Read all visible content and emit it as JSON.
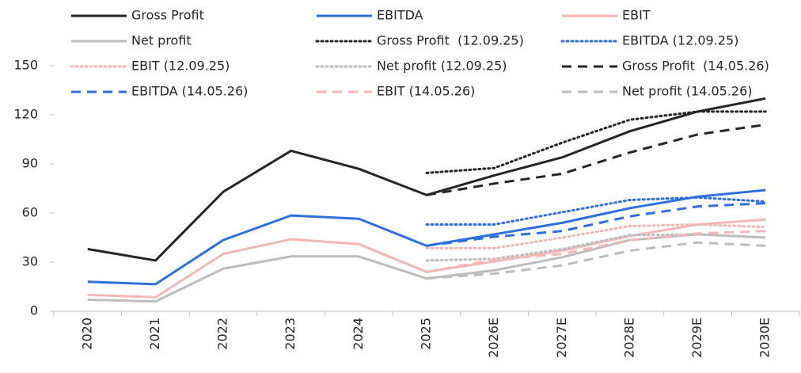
{
  "chart_data": {
    "type": "line",
    "categories": [
      "2020",
      "2021",
      "2022",
      "2023",
      "2024",
      "2025",
      "2026E",
      "2027E",
      "2028E",
      "2029E",
      "2030E"
    ],
    "ylim": [
      0,
      150
    ],
    "yticks": [
      0,
      30,
      60,
      90,
      120,
      150
    ],
    "series": [
      {
        "name": "Gross Profit",
        "color": "#262626",
        "style": "solid",
        "values": [
          38,
          31,
          73,
          98,
          87,
          71,
          83,
          94,
          110,
          122,
          130
        ]
      },
      {
        "name": "EBITDA",
        "color": "#2f6fdf",
        "style": "solid",
        "values": [
          18,
          16.5,
          43.5,
          58.5,
          56.5,
          40,
          47,
          54,
          63,
          70,
          74
        ]
      },
      {
        "name": "EBIT",
        "color": "#f4b6b6",
        "style": "solid",
        "values": [
          10,
          8.5,
          35,
          44,
          41,
          24,
          30.5,
          37,
          46,
          53,
          56
        ]
      },
      {
        "name": "Net profit",
        "color": "#bdbdbd",
        "style": "solid",
        "values": [
          7,
          6,
          26,
          33.5,
          33.5,
          20,
          25,
          33,
          43.5,
          47,
          45
        ]
      },
      {
        "name": "Gross Profit  (12.09.25)",
        "color": "#262626",
        "style": "dotted",
        "values": [
          null,
          null,
          null,
          null,
          null,
          84.5,
          87.5,
          103,
          117,
          122,
          122
        ]
      },
      {
        "name": "EBITDA (12.09.25)",
        "color": "#2f6fdf",
        "style": "dotted",
        "values": [
          null,
          null,
          null,
          null,
          null,
          53,
          53,
          60.5,
          68,
          69.5,
          67
        ]
      },
      {
        "name": "EBIT (12.09.25)",
        "color": "#f4b6b6",
        "style": "dotted",
        "values": [
          null,
          null,
          null,
          null,
          null,
          38.5,
          38.5,
          45,
          52,
          53,
          51.5
        ]
      },
      {
        "name": "Net profit (12.09.25)",
        "color": "#bdbdbd",
        "style": "dotted",
        "values": [
          null,
          null,
          null,
          null,
          null,
          31,
          32,
          38,
          46.5,
          47,
          45
        ]
      },
      {
        "name": "Gross Profit  (14.05.26)",
        "color": "#262626",
        "style": "dashed",
        "values": [
          null,
          null,
          null,
          null,
          null,
          71,
          78,
          84,
          97,
          108,
          114
        ]
      },
      {
        "name": "EBITDA (14.05.26)",
        "color": "#2f6fdf",
        "style": "dashed",
        "values": [
          null,
          null,
          null,
          null,
          null,
          40,
          45.5,
          49,
          58,
          64,
          66
        ]
      },
      {
        "name": "EBIT (14.05.26)",
        "color": "#f4b6b6",
        "style": "dashed",
        "values": [
          null,
          null,
          null,
          null,
          null,
          24,
          31.5,
          35,
          43.5,
          47.5,
          49
        ]
      },
      {
        "name": "Net profit (14.05.26)",
        "color": "#bdbdbd",
        "style": "dashed",
        "values": [
          null,
          null,
          null,
          null,
          null,
          20,
          23,
          28,
          37,
          42,
          40
        ]
      }
    ]
  }
}
